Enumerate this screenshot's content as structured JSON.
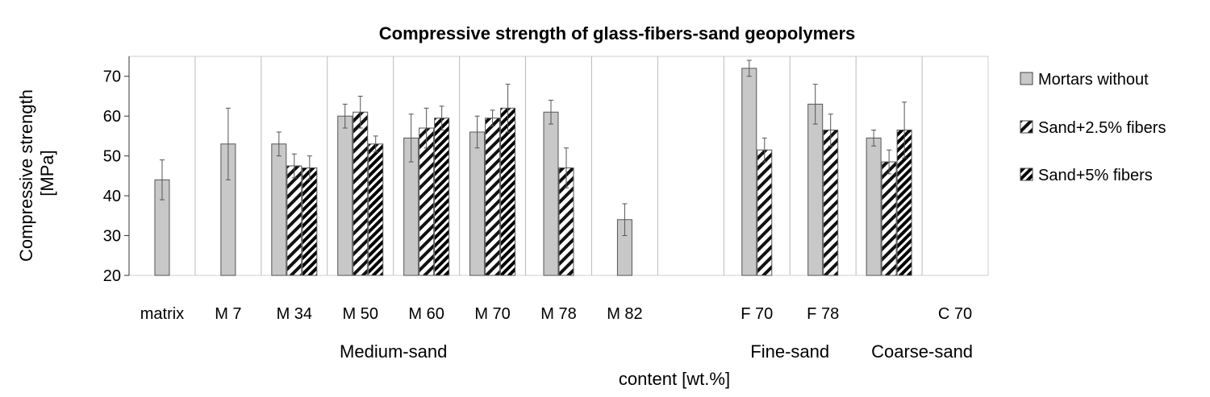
{
  "chart_data": {
    "type": "bar",
    "title": "Compressive strength of glass-fibers-sand geopolymers",
    "xlabel": "content [wt.%]",
    "ylabel": "Compressive strength [MPa]",
    "ylim": [
      20,
      75
    ],
    "yticks": [
      20,
      30,
      40,
      50,
      60,
      70
    ],
    "grid": "vertical category separators",
    "legend_position": "right",
    "categories": [
      "matrix",
      "M 7",
      "M 34",
      "M 50",
      "M 60",
      "M 70",
      "M 78",
      "M 82",
      "",
      "F 70",
      "F 78",
      "",
      "C 70"
    ],
    "groups": [
      {
        "label": "Medium-sand"
      },
      {
        "label": "Fine-sand"
      },
      {
        "label": "Coarse-sand"
      }
    ],
    "series": [
      {
        "name": "Mortars without",
        "pattern": "solid-gray",
        "values": [
          44,
          53,
          53,
          60,
          54.5,
          56,
          61,
          34,
          null,
          72,
          63,
          54.5,
          null
        ],
        "errors": [
          5,
          9,
          3,
          3,
          6,
          4,
          3,
          4,
          null,
          2,
          5,
          2,
          null
        ]
      },
      {
        "name": "Sand+2.5% fibers",
        "pattern": "hatched",
        "values": [
          null,
          null,
          47.5,
          61,
          57,
          59.5,
          47,
          null,
          null,
          51.5,
          56.5,
          48.5,
          null
        ],
        "errors": [
          null,
          null,
          3,
          4,
          5,
          2,
          5,
          null,
          null,
          3,
          4,
          3,
          null
        ]
      },
      {
        "name": "Sand+5% fibers",
        "pattern": "dense-hatched",
        "values": [
          null,
          null,
          47,
          53,
          59.5,
          62,
          null,
          null,
          null,
          null,
          null,
          56.5,
          null
        ],
        "errors": [
          null,
          null,
          3,
          2,
          3,
          6,
          null,
          null,
          null,
          null,
          null,
          7,
          null
        ]
      }
    ],
    "colors": {
      "fill": "#c8c8c8",
      "stroke": "#555555",
      "grid": "#bbbbbb",
      "text": "#000000"
    }
  }
}
